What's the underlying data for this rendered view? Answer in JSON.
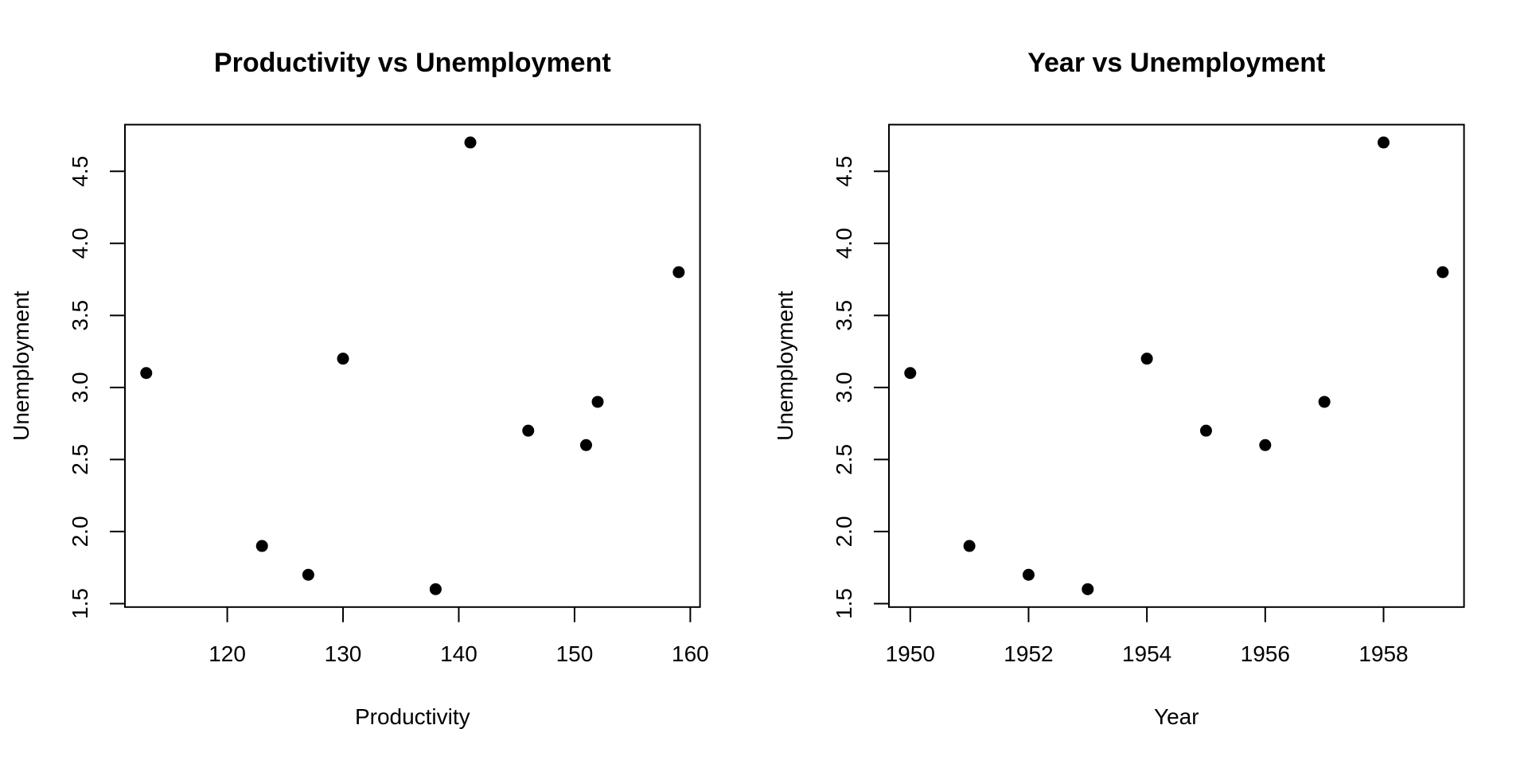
{
  "page": {
    "background_color": "#ffffff",
    "foreground_color": "#000000",
    "description": "Two base-R style scatter plots side by side"
  },
  "chart_data": [
    {
      "type": "scatter",
      "title": "Productivity vs Unemployment",
      "xlabel": "Productivity",
      "ylabel": "Unemployment",
      "x": [
        113,
        123,
        127,
        138,
        130,
        146,
        151,
        152,
        141,
        159
      ],
      "y": [
        3.1,
        1.9,
        1.7,
        1.6,
        3.2,
        2.7,
        2.6,
        2.9,
        4.7,
        3.8
      ],
      "xlim": [
        111.16,
        160.84
      ],
      "ylim": [
        1.476,
        4.824
      ],
      "xticks": {
        "values": [
          120,
          130,
          140,
          150,
          160
        ],
        "labels": [
          "120",
          "130",
          "140",
          "150",
          "160"
        ]
      },
      "yticks": {
        "values": [
          1.5,
          2.0,
          2.5,
          3.0,
          3.5,
          4.0,
          4.5
        ],
        "labels": [
          "1.5",
          "2.0",
          "2.5",
          "3.0",
          "3.5",
          "4.0",
          "4.5"
        ]
      },
      "marker": {
        "style": "filled-circle",
        "color": "#000000"
      },
      "grid": false,
      "legend": null
    },
    {
      "type": "scatter",
      "title": "Year vs Unemployment",
      "xlabel": "Year",
      "ylabel": "Unemployment",
      "x": [
        1950,
        1951,
        1952,
        1953,
        1954,
        1955,
        1956,
        1957,
        1958,
        1959
      ],
      "y": [
        3.1,
        1.9,
        1.7,
        1.6,
        3.2,
        2.7,
        2.6,
        2.9,
        4.7,
        3.8
      ],
      "xlim": [
        1949.64,
        1959.36
      ],
      "xticks": {
        "values": [
          1950,
          1952,
          1954,
          1956,
          1958
        ],
        "labels": [
          "1950",
          "1952",
          "1954",
          "1956",
          "1958"
        ]
      },
      "ylim": [
        1.476,
        4.824
      ],
      "yticks": {
        "values": [
          1.5,
          2.0,
          2.5,
          3.0,
          3.5,
          4.0,
          4.5
        ],
        "labels": [
          "1.5",
          "2.0",
          "2.5",
          "3.0",
          "3.5",
          "4.0",
          "4.5"
        ]
      },
      "marker": {
        "style": "filled-circle",
        "color": "#000000"
      },
      "grid": false,
      "legend": null
    }
  ]
}
